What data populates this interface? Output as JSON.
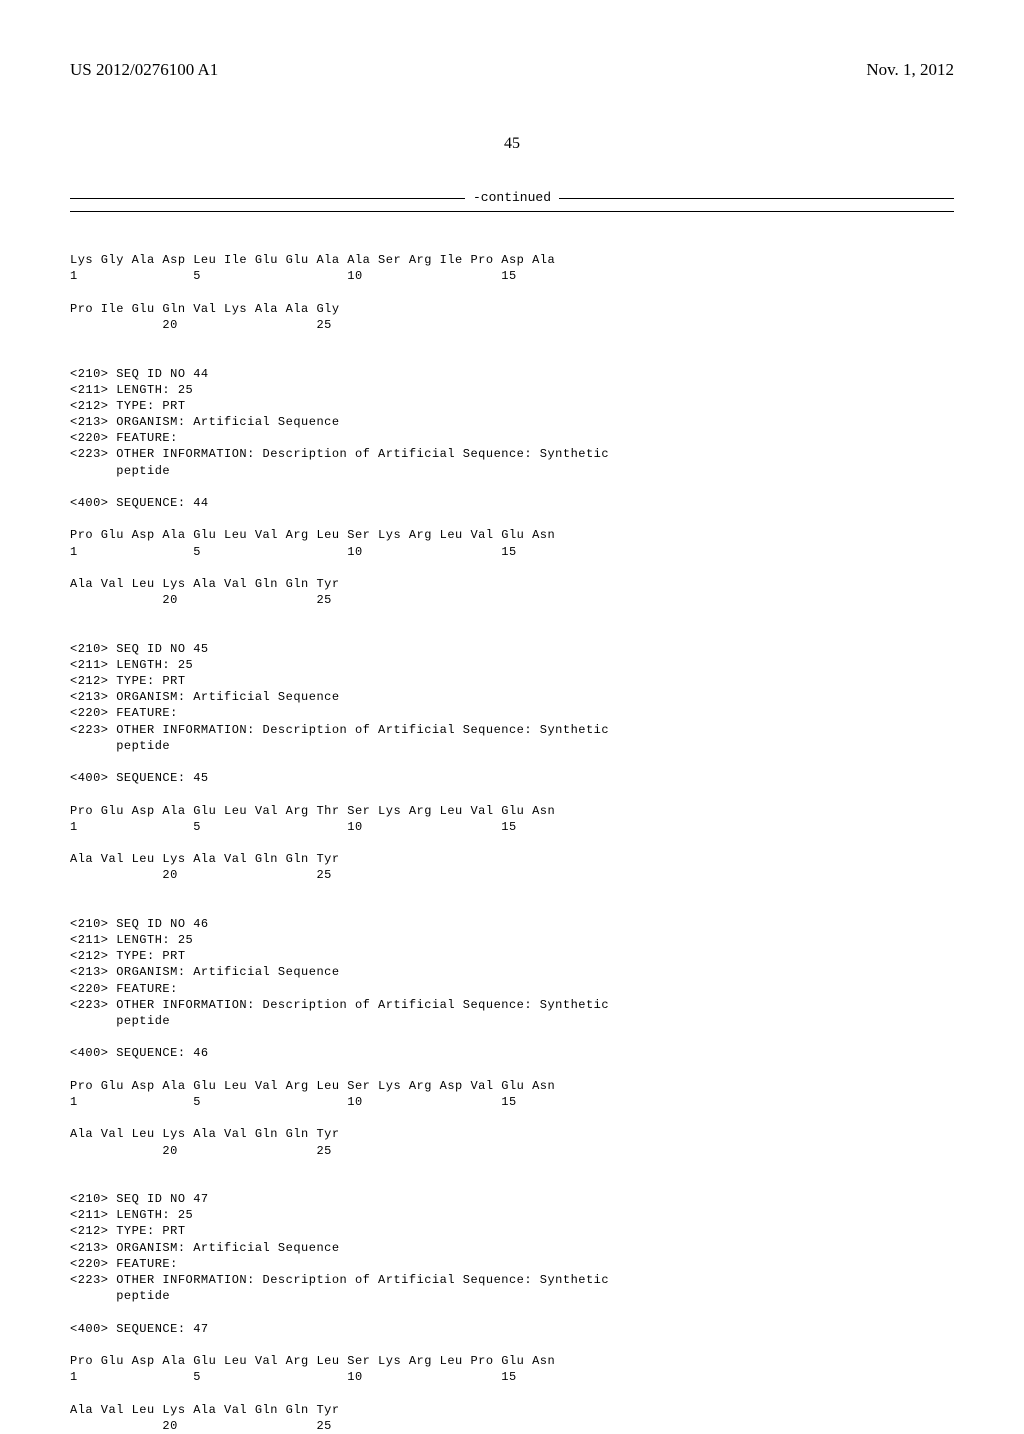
{
  "header": {
    "pub_number": "US 2012/0276100 A1",
    "pub_date": "Nov. 1, 2012"
  },
  "page_number": "45",
  "continued_label": "-continued",
  "seq_intro": {
    "line1": "Lys Gly Ala Asp Leu Ile Glu Glu Ala Ala Ser Arg Ile Pro Asp Ala",
    "pos1": "1               5                   10                  15",
    "line2": "Pro Ile Glu Gln Val Lys Ala Ala Gly",
    "pos2": "            20                  25"
  },
  "seq44": {
    "h1": "<210> SEQ ID NO 44",
    "h2": "<211> LENGTH: 25",
    "h3": "<212> TYPE: PRT",
    "h4": "<213> ORGANISM: Artificial Sequence",
    "h5": "<220> FEATURE:",
    "h6": "<223> OTHER INFORMATION: Description of Artificial Sequence: Synthetic",
    "h7": "      peptide",
    "h8": "<400> SEQUENCE: 44",
    "line1": "Pro Glu Asp Ala Glu Leu Val Arg Leu Ser Lys Arg Leu Val Glu Asn",
    "pos1": "1               5                   10                  15",
    "line2": "Ala Val Leu Lys Ala Val Gln Gln Tyr",
    "pos2": "            20                  25"
  },
  "seq45": {
    "h1": "<210> SEQ ID NO 45",
    "h2": "<211> LENGTH: 25",
    "h3": "<212> TYPE: PRT",
    "h4": "<213> ORGANISM: Artificial Sequence",
    "h5": "<220> FEATURE:",
    "h6": "<223> OTHER INFORMATION: Description of Artificial Sequence: Synthetic",
    "h7": "      peptide",
    "h8": "<400> SEQUENCE: 45",
    "line1": "Pro Glu Asp Ala Glu Leu Val Arg Thr Ser Lys Arg Leu Val Glu Asn",
    "pos1": "1               5                   10                  15",
    "line2": "Ala Val Leu Lys Ala Val Gln Gln Tyr",
    "pos2": "            20                  25"
  },
  "seq46": {
    "h1": "<210> SEQ ID NO 46",
    "h2": "<211> LENGTH: 25",
    "h3": "<212> TYPE: PRT",
    "h4": "<213> ORGANISM: Artificial Sequence",
    "h5": "<220> FEATURE:",
    "h6": "<223> OTHER INFORMATION: Description of Artificial Sequence: Synthetic",
    "h7": "      peptide",
    "h8": "<400> SEQUENCE: 46",
    "line1": "Pro Glu Asp Ala Glu Leu Val Arg Leu Ser Lys Arg Asp Val Glu Asn",
    "pos1": "1               5                   10                  15",
    "line2": "Ala Val Leu Lys Ala Val Gln Gln Tyr",
    "pos2": "            20                  25"
  },
  "seq47": {
    "h1": "<210> SEQ ID NO 47",
    "h2": "<211> LENGTH: 25",
    "h3": "<212> TYPE: PRT",
    "h4": "<213> ORGANISM: Artificial Sequence",
    "h5": "<220> FEATURE:",
    "h6": "<223> OTHER INFORMATION: Description of Artificial Sequence: Synthetic",
    "h7": "      peptide",
    "h8": "<400> SEQUENCE: 47",
    "line1": "Pro Glu Asp Ala Glu Leu Val Arg Leu Ser Lys Arg Leu Pro Glu Asn",
    "pos1": "1               5                   10                  15",
    "line2": "Ala Val Leu Lys Ala Val Gln Gln Tyr",
    "pos2": "            20                  25"
  }
}
